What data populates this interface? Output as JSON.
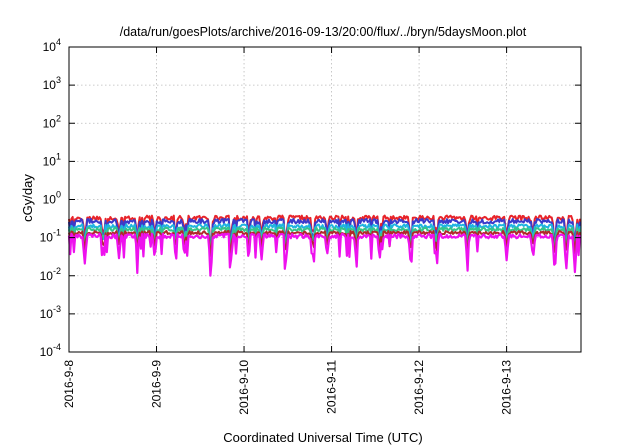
{
  "chart_data": {
    "type": "line",
    "title": "/data/run/goesPlots/archive/2016-09-13/20:00/flux/../bryn/5daysMoon.plot",
    "xlabel": "Coordinated Universal Time (UTC)",
    "ylabel": "cGy/day",
    "yscale": "log",
    "ylim": [
      0.0001,
      10000
    ],
    "xlim": [
      0,
      5.85
    ],
    "x_start_date": "2016-9-8",
    "x_ticks": [
      {
        "value": 0,
        "label": "2016-9-8"
      },
      {
        "value": 1,
        "label": "2016-9-9"
      },
      {
        "value": 2,
        "label": "2016-9-10"
      },
      {
        "value": 3,
        "label": "2016-9-11"
      },
      {
        "value": 4,
        "label": "2016-9-12"
      },
      {
        "value": 5,
        "label": "2016-9-13"
      }
    ],
    "y_ticks": [
      {
        "value": 0.0001,
        "base": "10",
        "exp": "-4"
      },
      {
        "value": 0.001,
        "base": "10",
        "exp": "-3"
      },
      {
        "value": 0.01,
        "base": "10",
        "exp": "-2"
      },
      {
        "value": 0.1,
        "base": "10",
        "exp": "-1"
      },
      {
        "value": 1,
        "base": "10",
        "exp": "0"
      },
      {
        "value": 10,
        "base": "10",
        "exp": "1"
      },
      {
        "value": 100,
        "base": "10",
        "exp": "2"
      },
      {
        "value": 1000,
        "base": "10",
        "exp": "3"
      },
      {
        "value": 10000,
        "base": "10",
        "exp": "4"
      }
    ],
    "grid": true,
    "series": [
      {
        "color": "#e8242a",
        "base": 0.33,
        "dip_depth": 0.55,
        "noise": 0.12
      },
      {
        "color": "#3a3acb",
        "base": 0.27,
        "dip_depth": 0.55,
        "noise": 0.12
      },
      {
        "color": "#1fb5e0",
        "base": 0.2,
        "dip_depth": 0.5,
        "noise": 0.1
      },
      {
        "color": "#37c48a",
        "base": 0.165,
        "dip_depth": 0.45,
        "noise": 0.09
      },
      {
        "color": "#b02a2a",
        "base": 0.135,
        "dip_depth": 0.45,
        "noise": 0.09
      },
      {
        "color": "#ee11ee",
        "base": 0.11,
        "dip_depth": 0.75,
        "noise": 0.12
      }
    ],
    "dips": [
      {
        "x": 0.18,
        "depth": 1.0
      },
      {
        "x": 0.57,
        "depth": 0.8
      },
      {
        "x": 0.78,
        "depth": 0.7
      },
      {
        "x": 0.98,
        "depth": 0.85
      },
      {
        "x": 1.32,
        "depth": 0.7
      },
      {
        "x": 1.62,
        "depth": 1.6
      },
      {
        "x": 1.85,
        "depth": 0.9
      },
      {
        "x": 2.2,
        "depth": 0.8
      },
      {
        "x": 2.48,
        "depth": 0.9
      },
      {
        "x": 2.78,
        "depth": 0.8
      },
      {
        "x": 2.95,
        "depth": 0.75
      },
      {
        "x": 3.28,
        "depth": 0.7
      },
      {
        "x": 3.55,
        "depth": 0.85
      },
      {
        "x": 3.9,
        "depth": 0.8
      },
      {
        "x": 4.2,
        "depth": 0.7
      },
      {
        "x": 4.55,
        "depth": 0.8
      },
      {
        "x": 5.0,
        "depth": 0.85
      },
      {
        "x": 5.3,
        "depth": 0.8
      },
      {
        "x": 5.55,
        "depth": 1.4
      },
      {
        "x": 5.68,
        "depth": 1.2
      },
      {
        "x": 5.78,
        "depth": 1.3
      }
    ]
  }
}
